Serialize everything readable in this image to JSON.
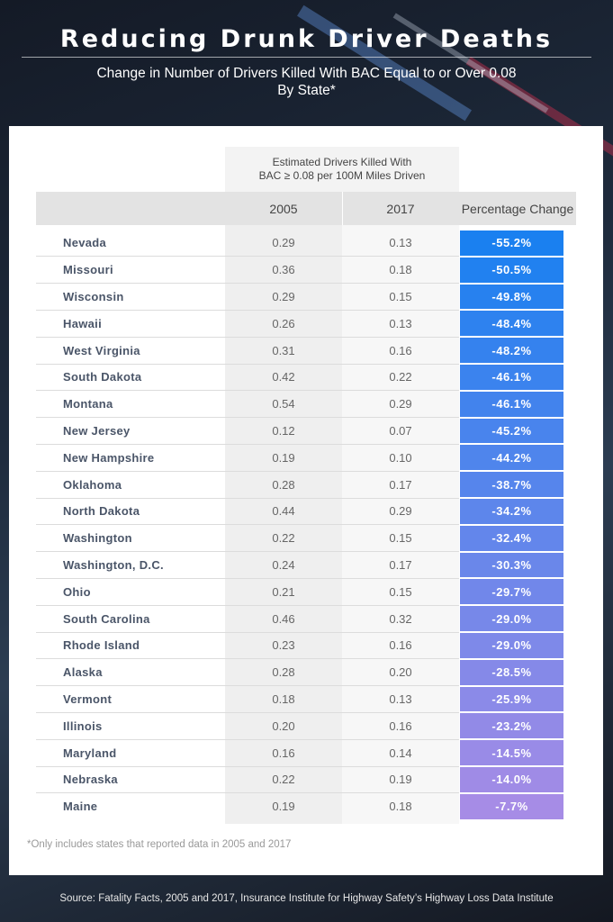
{
  "header": {
    "title": "Reducing Drunk Driver Deaths",
    "subtitle": [
      "Change in Number of Drivers Killed With BAC Equal to or Over 0.08",
      "By State*"
    ]
  },
  "table": {
    "group_header": [
      "Estimated Drivers Killed With",
      "BAC ≥ 0.08 per 100M Miles Driven"
    ],
    "columns": [
      "2005",
      "2017",
      "Percentage Change"
    ],
    "rows": [
      [
        "Nevada",
        "0.29",
        "0.13",
        "-55.2%"
      ],
      [
        "Missouri",
        "0.36",
        "0.18",
        "-50.5%"
      ],
      [
        "Wisconsin",
        "0.29",
        "0.15",
        "-49.8%"
      ],
      [
        "Hawaii",
        "0.26",
        "0.13",
        "-48.4%"
      ],
      [
        "West Virginia",
        "0.31",
        "0.16",
        "-48.2%"
      ],
      [
        "South Dakota",
        "0.42",
        "0.22",
        "-46.1%"
      ],
      [
        "Montana",
        "0.54",
        "0.29",
        "-46.1%"
      ],
      [
        "New Jersey",
        "0.12",
        "0.07",
        "-45.2%"
      ],
      [
        "New Hampshire",
        "0.19",
        "0.10",
        "-44.2%"
      ],
      [
        "Oklahoma",
        "0.28",
        "0.17",
        "-38.7%"
      ],
      [
        "North Dakota",
        "0.44",
        "0.29",
        "-34.2%"
      ],
      [
        "Washington",
        "0.22",
        "0.15",
        "-32.4%"
      ],
      [
        "Washington, D.C.",
        "0.24",
        "0.17",
        "-30.3%"
      ],
      [
        "Ohio",
        "0.21",
        "0.15",
        "-29.7%"
      ],
      [
        "South Carolina",
        "0.46",
        "0.32",
        "-29.0%"
      ],
      [
        "Rhode Island",
        "0.23",
        "0.16",
        "-29.0%"
      ],
      [
        "Alaska",
        "0.28",
        "0.20",
        "-28.5%"
      ],
      [
        "Vermont",
        "0.18",
        "0.13",
        "-25.9%"
      ],
      [
        "Illinois",
        "0.20",
        "0.16",
        "-23.2%"
      ],
      [
        "Maryland",
        "0.16",
        "0.14",
        "-14.5%"
      ],
      [
        "Nebraska",
        "0.22",
        "0.19",
        "-14.0%"
      ],
      [
        "Maine",
        "0.19",
        "0.18",
        "-7.7%"
      ]
    ]
  },
  "footnote": "*Only includes states that reported data in 2005 and 2017",
  "source": "Source: Fatality Facts, 2005 and 2017, Insurance Institute for Highway Safety’s Highway Loss Data Institute"
}
